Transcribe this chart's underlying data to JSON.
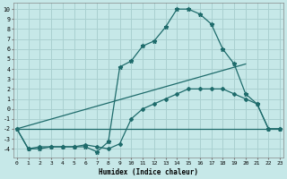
{
  "title": "",
  "xlabel": "Humidex (Indice chaleur)",
  "bg_color": "#c6e8e8",
  "grid_color": "#aad0d0",
  "line_color": "#1e6b6b",
  "series": [
    {
      "x": [
        0,
        1,
        2,
        3,
        4,
        5,
        6,
        7,
        8,
        9,
        10,
        11,
        12,
        13,
        14,
        15,
        16,
        17,
        18,
        19,
        20,
        21,
        22,
        23
      ],
      "y": [
        -2,
        -4,
        -4,
        -3.8,
        -3.8,
        -3.8,
        -3.8,
        -4.3,
        -3.3,
        4.2,
        4.8,
        6.3,
        6.8,
        8.2,
        10,
        10,
        9.5,
        8.5,
        6.0,
        4.5,
        1.5,
        0.5,
        -2.0,
        -2.0
      ],
      "marker": "*",
      "markersize": 3.5
    },
    {
      "x": [
        0,
        1,
        2,
        3,
        4,
        5,
        6,
        7,
        8,
        9,
        10,
        11,
        12,
        13,
        14,
        15,
        16,
        17,
        18,
        19,
        20,
        21,
        22,
        23
      ],
      "y": [
        -2,
        -4,
        -3.8,
        -3.8,
        -3.8,
        -3.8,
        -3.6,
        -3.8,
        -4.0,
        -3.5,
        -1.0,
        0.0,
        0.5,
        1.0,
        1.5,
        2.0,
        2.0,
        2.0,
        2.0,
        1.5,
        1.0,
        0.5,
        -2.0,
        -2.0
      ],
      "marker": "D",
      "markersize": 2
    },
    {
      "x": [
        0,
        20
      ],
      "y": [
        -2,
        4.5
      ],
      "marker": null,
      "markersize": 0
    },
    {
      "x": [
        0,
        23
      ],
      "y": [
        -2,
        -2
      ],
      "marker": null,
      "markersize": 0
    }
  ],
  "xlim": [
    -0.3,
    23.3
  ],
  "ylim": [
    -4.9,
    10.6
  ],
  "yticks": [
    -4,
    -3,
    -2,
    -1,
    0,
    1,
    2,
    3,
    4,
    5,
    6,
    7,
    8,
    9,
    10
  ],
  "xticks": [
    0,
    1,
    2,
    3,
    4,
    5,
    6,
    7,
    8,
    9,
    10,
    11,
    12,
    13,
    14,
    15,
    16,
    17,
    18,
    19,
    20,
    21,
    22,
    23
  ]
}
